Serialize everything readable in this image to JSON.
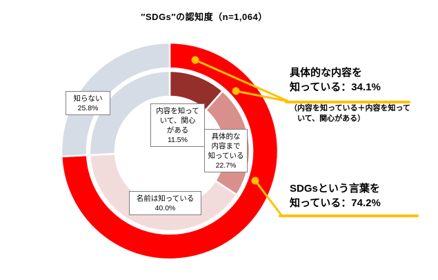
{
  "title": "″SDGs″の認知度（n=1,064）",
  "chart_data": {
    "type": "pie",
    "subtype": "double-donut",
    "title": "″SDGs″の認知度（n=1,064）",
    "sample_size": "n=1,064",
    "start_angle_deg": 0,
    "direction": "clockwise",
    "rings": [
      {
        "name": "outer",
        "segments": [
          {
            "label": "SDGsという言葉を知っている",
            "value": 74.2,
            "color": "#FF0000"
          },
          {
            "label": "知らない",
            "value": 25.8,
            "color": "#D6DCE5"
          }
        ]
      },
      {
        "name": "inner",
        "segments": [
          {
            "label": "内容を知っていて、関心がある",
            "value": 11.5,
            "color": "#952F2C"
          },
          {
            "label": "具体的な内容まで知っている",
            "value": 22.7,
            "color": "#D98F8B"
          },
          {
            "label": "名前は知っている",
            "value": 40.0,
            "color": "#F2DCDB"
          },
          {
            "label": "知らない",
            "value": 25.8,
            "color": "#D6DCE5"
          }
        ]
      }
    ]
  },
  "segment_labels": {
    "shiranai": "知らない\n25.8%",
    "naiyo_kanshin": "内容を知って\nいて、関心\nがある\n11.5%",
    "gutaiteki": "具体的な\n内容まで\n知っている\n22.7%",
    "namae": "名前は知っている\n40.0%"
  },
  "annotations": {
    "specific": {
      "line1": "具体的な内容を",
      "line2": "知っている：34.1%",
      "note": "（内容を知っている＋内容を知って\n　いて、関心がある）"
    },
    "word": {
      "line1": "SDGsという言葉を",
      "line2": "知っている：74.2%"
    }
  },
  "colors": {
    "accent_callout": "#FFC000",
    "red": "#FF0000",
    "dark_red": "#952F2C",
    "medium_pink": "#D98F8B",
    "light_pink": "#F2DCDB",
    "lavender": "#D6DCE5",
    "box_border": "#7F7F7F",
    "text": "#000000"
  }
}
